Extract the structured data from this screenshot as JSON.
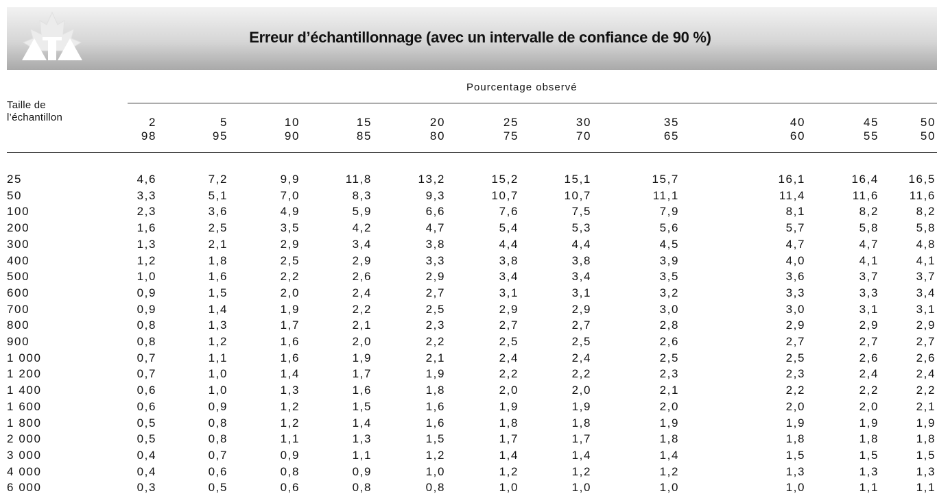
{
  "header": {
    "title": "Erreur d’échantillonnage (avec un intervalle de confiance de 90 %)"
  },
  "table": {
    "row_header": [
      "Taille de",
      "l’échantillon"
    ],
    "group_header": "Pourcentage observé",
    "columns": [
      [
        "2",
        "98"
      ],
      [
        "5",
        "95"
      ],
      [
        "10",
        "90"
      ],
      [
        "15",
        "85"
      ],
      [
        "20",
        "80"
      ],
      [
        "25",
        "75"
      ],
      [
        "30",
        "70"
      ],
      [
        "35",
        "65"
      ],
      [
        "40",
        "60"
      ],
      [
        "45",
        "55"
      ],
      [
        "50",
        "50"
      ]
    ],
    "rows": [
      [
        "25",
        "4,6",
        "7,2",
        "9,9",
        "11,8",
        "13,2",
        "15,2",
        "15,1",
        "15,7",
        "16,1",
        "16,4",
        "16,5"
      ],
      [
        "50",
        "3,3",
        "5,1",
        "7,0",
        "8,3",
        "9,3",
        "10,7",
        "10,7",
        "11,1",
        "11,4",
        "11,6",
        "11,6"
      ],
      [
        "100",
        "2,3",
        "3,6",
        "4,9",
        "5,9",
        "6,6",
        "7,6",
        "7,5",
        "7,9",
        "8,1",
        "8,2",
        "8,2"
      ],
      [
        "200",
        "1,6",
        "2,5",
        "3,5",
        "4,2",
        "4,7",
        "5,4",
        "5,3",
        "5,6",
        "5,7",
        "5,8",
        "5,8"
      ],
      [
        "300",
        "1,3",
        "2,1",
        "2,9",
        "3,4",
        "3,8",
        "4,4",
        "4,4",
        "4,5",
        "4,7",
        "4,7",
        "4,8"
      ],
      [
        "400",
        "1,2",
        "1,8",
        "2,5",
        "2,9",
        "3,3",
        "3,8",
        "3,8",
        "3,9",
        "4,0",
        "4,1",
        "4,1"
      ],
      [
        "500",
        "1,0",
        "1,6",
        "2,2",
        "2,6",
        "2,9",
        "3,4",
        "3,4",
        "3,5",
        "3,6",
        "3,7",
        "3,7"
      ],
      [
        "600",
        "0,9",
        "1,5",
        "2,0",
        "2,4",
        "2,7",
        "3,1",
        "3,1",
        "3,2",
        "3,3",
        "3,3",
        "3,4"
      ],
      [
        "700",
        "0,9",
        "1,4",
        "1,9",
        "2,2",
        "2,5",
        "2,9",
        "2,9",
        "3,0",
        "3,0",
        "3,1",
        "3,1"
      ],
      [
        "800",
        "0,8",
        "1,3",
        "1,7",
        "2,1",
        "2,3",
        "2,7",
        "2,7",
        "2,8",
        "2,9",
        "2,9",
        "2,9"
      ],
      [
        "900",
        "0,8",
        "1,2",
        "1,6",
        "2,0",
        "2,2",
        "2,5",
        "2,5",
        "2,6",
        "2,7",
        "2,7",
        "2,7"
      ],
      [
        "1 000",
        "0,7",
        "1,1",
        "1,6",
        "1,9",
        "2,1",
        "2,4",
        "2,4",
        "2,5",
        "2,5",
        "2,6",
        "2,6"
      ],
      [
        "1 200",
        "0,7",
        "1,0",
        "1,4",
        "1,7",
        "1,9",
        "2,2",
        "2,2",
        "2,3",
        "2,3",
        "2,4",
        "2,4"
      ],
      [
        "1 400",
        "0,6",
        "1,0",
        "1,3",
        "1,6",
        "1,8",
        "2,0",
        "2,0",
        "2,1",
        "2,2",
        "2,2",
        "2,2"
      ],
      [
        "1 600",
        "0,6",
        "0,9",
        "1,2",
        "1,5",
        "1,6",
        "1,9",
        "1,9",
        "2,0",
        "2,0",
        "2,0",
        "2,1"
      ],
      [
        "1 800",
        "0,5",
        "0,8",
        "1,2",
        "1,4",
        "1,6",
        "1,8",
        "1,8",
        "1,9",
        "1,9",
        "1,9",
        "1,9"
      ],
      [
        "2 000",
        "0,5",
        "0,8",
        "1,1",
        "1,3",
        "1,5",
        "1,7",
        "1,7",
        "1,8",
        "1,8",
        "1,8",
        "1,8"
      ],
      [
        "3 000",
        "0,4",
        "0,7",
        "0,9",
        "1,1",
        "1,2",
        "1,4",
        "1,4",
        "1,4",
        "1,5",
        "1,5",
        "1,5"
      ],
      [
        "4 000",
        "0,4",
        "0,6",
        "0,8",
        "0,9",
        "1,0",
        "1,2",
        "1,2",
        "1,2",
        "1,3",
        "1,3",
        "1,3"
      ],
      [
        "6 000",
        "0,3",
        "0,5",
        "0,6",
        "0,8",
        "0,8",
        "1,0",
        "1,0",
        "1,0",
        "1,0",
        "1,1",
        "1,1"
      ]
    ]
  }
}
